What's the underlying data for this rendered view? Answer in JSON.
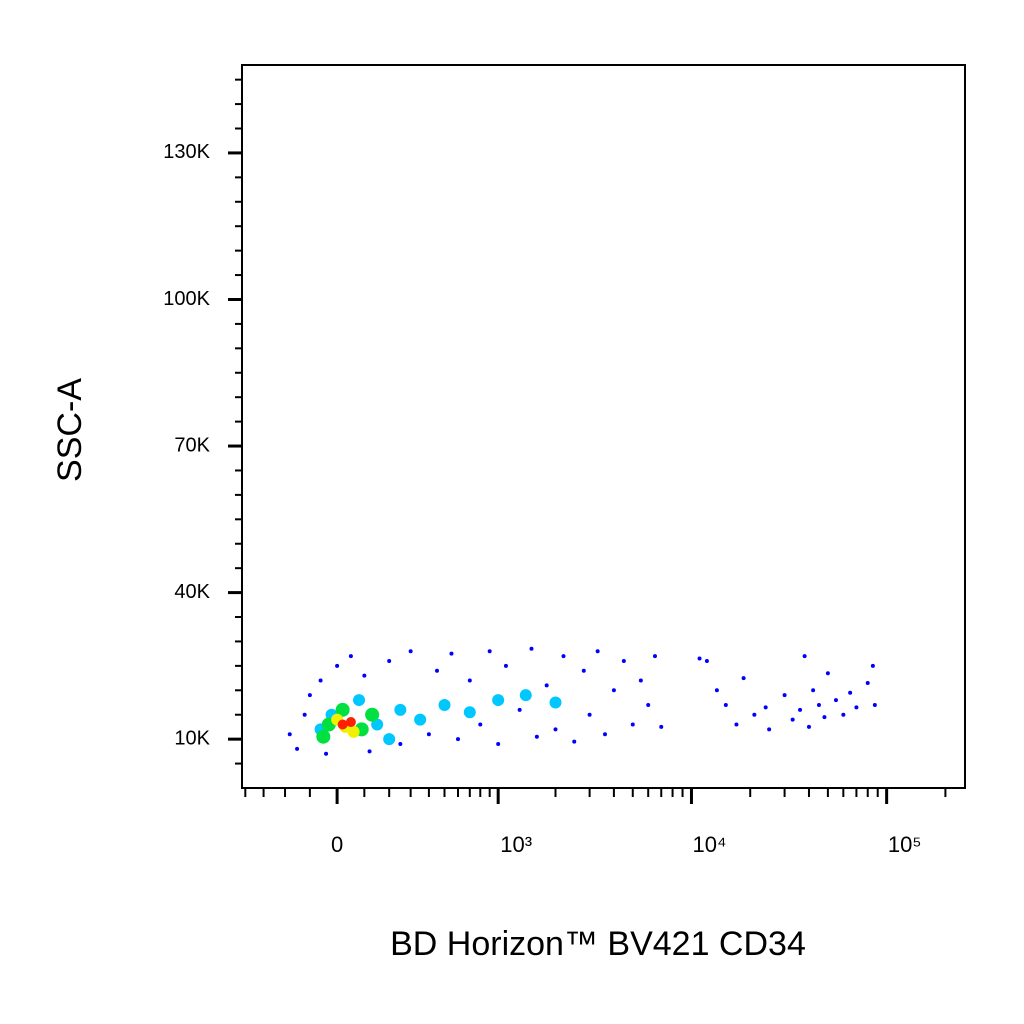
{
  "chart_data": {
    "type": "scatter",
    "x_label": "BD Horizon™ BV421 CD34",
    "y_label": "SSC-A",
    "x_scale": "biexponential",
    "xlim": [
      -420,
      252000
    ],
    "ylim": [
      0,
      148000
    ],
    "xticks": [
      {
        "value": 0,
        "label": "0"
      },
      {
        "value": 1000,
        "label": "10³"
      },
      {
        "value": 10000,
        "label": "10⁴"
      },
      {
        "value": 100000,
        "label": "10⁵"
      }
    ],
    "xminorticks": [
      -400,
      -300,
      -200,
      -100,
      100,
      200,
      300,
      400,
      500,
      600,
      700,
      800,
      900,
      2000,
      3000,
      4000,
      5000,
      6000,
      7000,
      8000,
      9000,
      20000,
      30000,
      40000,
      50000,
      60000,
      70000,
      80000,
      90000,
      200000
    ],
    "yticks": [
      {
        "value": 10000,
        "label": "10K"
      },
      {
        "value": 40000,
        "label": "40K"
      },
      {
        "value": 70000,
        "label": "70K"
      },
      {
        "value": 100000,
        "label": "100K"
      },
      {
        "value": 130000,
        "label": "130K"
      }
    ],
    "yminorticks": [
      5000,
      15000,
      20000,
      25000,
      30000,
      35000,
      45000,
      50000,
      55000,
      60000,
      65000,
      75000,
      80000,
      85000,
      90000,
      95000,
      105000,
      110000,
      115000,
      120000,
      125000,
      135000,
      140000,
      145000
    ],
    "series": [
      {
        "color": "#0000ff",
        "x": [
          -180,
          -150,
          -120,
          -100,
          -60,
          -40,
          0,
          50,
          100,
          120,
          200,
          250,
          300,
          400,
          450,
          550,
          600,
          700,
          800,
          900,
          1000,
          1100,
          1300,
          1500,
          1600,
          1800,
          2000,
          2200,
          2500,
          2800,
          3000,
          3300,
          3600,
          4000,
          4500,
          5000,
          5500,
          6000,
          6500,
          7000,
          11000,
          12000,
          13500,
          15000,
          17000,
          18500,
          21000,
          24000,
          25000,
          30000,
          33000,
          36000,
          38000,
          40000,
          42000,
          45000,
          48000,
          50000,
          55000,
          60000,
          65000,
          70000,
          80000,
          85000,
          87000
        ],
        "values": [
          11000,
          8000,
          15000,
          19000,
          22000,
          7000,
          25000,
          27000,
          23000,
          7500,
          26000,
          9000,
          28000,
          11000,
          24000,
          27500,
          10000,
          22000,
          13000,
          28000,
          9000,
          25000,
          16000,
          28500,
          10500,
          21000,
          12000,
          27000,
          9500,
          24000,
          15000,
          28000,
          11000,
          20000,
          26000,
          13000,
          22000,
          17000,
          27000,
          12500,
          26500,
          26000,
          20000,
          17000,
          13000,
          22500,
          15000,
          16500,
          12000,
          19000,
          14000,
          16000,
          27000,
          12500,
          20000,
          17000,
          14500,
          23500,
          18000,
          15000,
          19500,
          16500,
          21500,
          25000,
          17000
        ]
      },
      {
        "color": "#00c8ff",
        "x": [
          -20,
          80,
          150,
          250,
          350,
          500,
          700,
          1000,
          1400,
          2000,
          -60,
          200
        ],
        "values": [
          15000,
          18000,
          13000,
          16000,
          14000,
          17000,
          15500,
          18000,
          19000,
          17500,
          12000,
          10000
        ]
      },
      {
        "color": "#00e040",
        "x": [
          -30,
          20,
          90,
          130,
          -50
        ],
        "values": [
          13000,
          16000,
          12000,
          15000,
          10500
        ]
      },
      {
        "color": "#f0f000",
        "x": [
          0,
          60,
          30
        ],
        "values": [
          14000,
          11500,
          12500
        ]
      },
      {
        "color": "#ff2000",
        "x": [
          20,
          50
        ],
        "values": [
          13000,
          13500
        ]
      }
    ]
  }
}
